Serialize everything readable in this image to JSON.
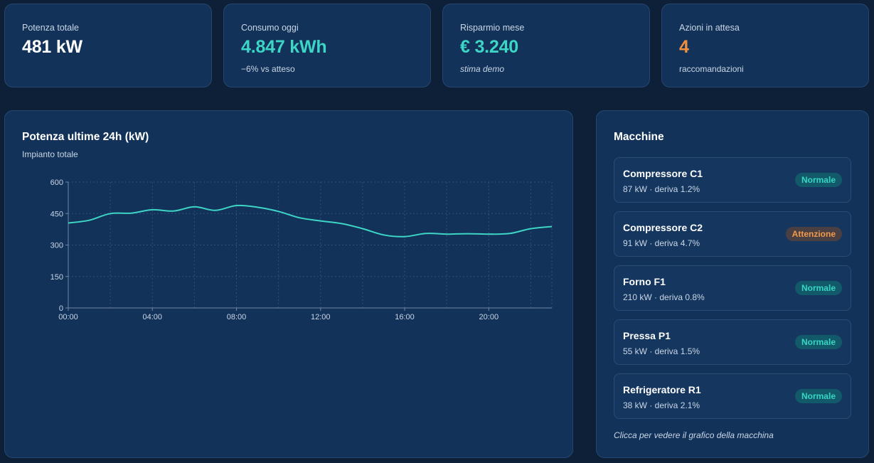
{
  "colors": {
    "accent_teal": "#3dd5c5",
    "accent_orange": "#f28f3c",
    "card_bg": "#123259",
    "page_bg": "#0e2038"
  },
  "kpis": [
    {
      "label": "Potenza totale",
      "value": "481 kW",
      "sub": "",
      "color": "#ffffff"
    },
    {
      "label": "Consumo oggi",
      "value": "4.847 kWh",
      "sub": "−6% vs atteso",
      "color": "#3dd5c5"
    },
    {
      "label": "Risparmio mese",
      "value": "€ 3.240",
      "sub": "stima demo",
      "color": "#3dd5c5"
    },
    {
      "label": "Azioni in attesa",
      "value": "4",
      "sub": "raccomandazioni",
      "color": "#f28f3c"
    }
  ],
  "chart_panel": {
    "title": "Potenza ultime 24h (kW)",
    "subtitle": "Impianto totale"
  },
  "chart_data": {
    "type": "line",
    "title": "Potenza ultime 24h (kW)",
    "subtitle": "Impianto totale",
    "xlabel": "",
    "ylabel": "",
    "x_ticks": [
      "00:00",
      "04:00",
      "08:00",
      "12:00",
      "16:00",
      "20:00"
    ],
    "y_ticks": [
      0,
      150,
      300,
      450,
      600
    ],
    "ylim": [
      0,
      600
    ],
    "xlim": [
      0,
      23
    ],
    "grid": true,
    "series": [
      {
        "color": "#3dd5c5",
        "x": [
          0,
          1,
          2,
          3,
          4,
          5,
          6,
          7,
          8,
          9,
          10,
          11,
          12,
          13,
          14,
          15,
          16,
          17,
          18,
          19,
          20,
          21,
          22,
          23
        ],
        "values": [
          405,
          418,
          450,
          452,
          468,
          462,
          482,
          465,
          488,
          480,
          460,
          430,
          415,
          402,
          378,
          348,
          340,
          355,
          352,
          354,
          352,
          355,
          378,
          388
        ]
      }
    ]
  },
  "machines_panel": {
    "title": "Macchine",
    "items": [
      {
        "name": "Compressore C1",
        "detail": "87 kW · deriva 1.2%",
        "status": "Normale",
        "status_type": "ok"
      },
      {
        "name": "Compressore C2",
        "detail": "91 kW · deriva 4.7%",
        "status": "Attenzione",
        "status_type": "warn"
      },
      {
        "name": "Forno F1",
        "detail": "210 kW · deriva 0.8%",
        "status": "Normale",
        "status_type": "ok"
      },
      {
        "name": "Pressa P1",
        "detail": "55 kW · deriva 1.5%",
        "status": "Normale",
        "status_type": "ok"
      },
      {
        "name": "Refrigeratore R1",
        "detail": "38 kW · deriva 2.1%",
        "status": "Normale",
        "status_type": "ok"
      }
    ],
    "hint": "Clicca per vedere il grafico della macchina"
  }
}
